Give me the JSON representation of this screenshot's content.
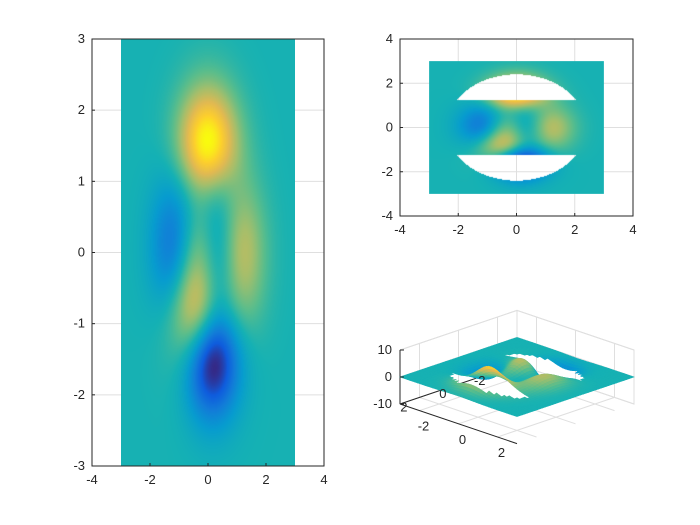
{
  "chart_data": [
    {
      "type": "heatmap",
      "subtype": "surface-view-2d",
      "title": "",
      "xlabel": "",
      "ylabel": "",
      "xlim": [
        -4,
        4
      ],
      "ylim": [
        -3,
        3
      ],
      "x_ticks": [
        "-4",
        "-2",
        "0",
        "2",
        "4"
      ],
      "y_ticks": [
        "-3",
        "-2",
        "-1",
        "0",
        "1",
        "2",
        "3"
      ],
      "data_x_range": [
        -3,
        3
      ],
      "data_y_range": [
        -3,
        3
      ],
      "grid": true,
      "colormap": "parula",
      "function": "peaks"
    },
    {
      "type": "heatmap",
      "subtype": "surface-view-2d-with-holes",
      "title": "",
      "xlabel": "",
      "ylabel": "",
      "xlim": [
        -4,
        4
      ],
      "ylim": [
        -4,
        4
      ],
      "x_ticks": [
        "-4",
        "-2",
        "0",
        "2",
        "4"
      ],
      "y_ticks": [
        "-4",
        "-2",
        "0",
        "2",
        "4"
      ],
      "data_x_range": [
        -3,
        3
      ],
      "data_y_range": [
        -3,
        3
      ],
      "hole_regions": "top and bottom circular segments (radius about 2.4, |y| beyond about 1.25)",
      "grid": true,
      "colormap": "parula",
      "function": "peaks"
    },
    {
      "type": "surface",
      "subtype": "3d-surface",
      "title": "",
      "xlabel": "",
      "ylabel": "",
      "zlabel": "",
      "xlim": [
        -3,
        3
      ],
      "ylim": [
        -3,
        3
      ],
      "zlim": [
        -10,
        10
      ],
      "x_ticks": [
        "-2",
        "0",
        "2"
      ],
      "y_ticks": [
        "2",
        "0",
        "-2"
      ],
      "z_ticks": [
        "10",
        "0",
        "-10"
      ],
      "grid": true,
      "colormap": "parula",
      "function": "peaks"
    }
  ],
  "colors": {
    "parula_low": "#352a87",
    "parula_mid": "#12beb9",
    "parula_high": "#f9fb0e",
    "axis": "#262626",
    "grid": "#dfdfdf"
  }
}
